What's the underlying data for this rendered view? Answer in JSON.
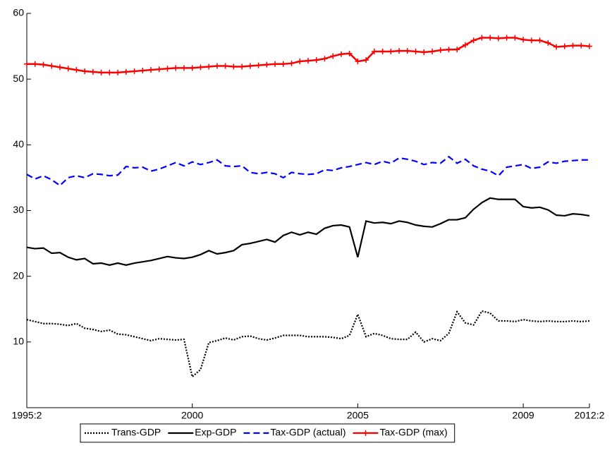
{
  "chart_data": {
    "type": "line",
    "categories": [
      "1995:2",
      null,
      null,
      null,
      null,
      null,
      null,
      null,
      null,
      null,
      null,
      null,
      null,
      null,
      null,
      null,
      null,
      null,
      null,
      null,
      "2000",
      null,
      null,
      null,
      null,
      null,
      null,
      null,
      null,
      null,
      null,
      null,
      null,
      null,
      null,
      null,
      null,
      null,
      null,
      null,
      "2005",
      null,
      null,
      null,
      null,
      null,
      null,
      null,
      null,
      null,
      null,
      null,
      null,
      null,
      null,
      null,
      null,
      null,
      null,
      null,
      "2009",
      null,
      null,
      null,
      null,
      null,
      null,
      null,
      "2012:2"
    ],
    "ylim": [
      0,
      60
    ],
    "yticks": [
      10,
      20,
      30,
      40,
      50,
      60
    ],
    "grid": false,
    "legend": "bottom",
    "series": [
      {
        "name": "Trans-GDP",
        "color": "#000000",
        "dash": "dotted",
        "marker": null,
        "values": [
          13.4,
          13.1,
          12.8,
          12.8,
          12.7,
          12.5,
          12.8,
          12.1,
          11.9,
          11.6,
          11.8,
          11.2,
          11.1,
          10.8,
          10.5,
          10.2,
          10.5,
          10.4,
          10.3,
          10.4,
          4.7,
          5.8,
          9.9,
          10.2,
          10.6,
          10.3,
          10.8,
          10.9,
          10.5,
          10.3,
          10.6,
          11.0,
          11.0,
          11.0,
          10.8,
          10.8,
          10.8,
          10.7,
          10.5,
          11.0,
          14.2,
          10.8,
          11.3,
          11.0,
          10.5,
          10.4,
          10.4,
          11.5,
          10.0,
          10.5,
          10.2,
          11.3,
          14.6,
          12.9,
          12.6,
          14.7,
          14.4,
          13.2,
          13.2,
          13.1,
          13.4,
          13.2,
          13.1,
          13.2,
          13.1,
          13.1,
          13.2,
          13.1,
          13.2
        ]
      },
      {
        "name": "Exp-GDP",
        "color": "#000000",
        "dash": "solid",
        "marker": null,
        "values": [
          24.4,
          24.2,
          24.3,
          23.5,
          23.6,
          22.9,
          22.5,
          22.7,
          21.9,
          22.0,
          21.7,
          22.0,
          21.7,
          22.0,
          22.2,
          22.4,
          22.7,
          23.0,
          22.8,
          22.7,
          22.9,
          23.3,
          23.9,
          23.4,
          23.6,
          23.9,
          24.8,
          25.0,
          25.3,
          25.6,
          25.2,
          26.2,
          26.7,
          26.3,
          26.7,
          26.4,
          27.3,
          27.7,
          27.8,
          27.5,
          22.9,
          28.4,
          28.1,
          28.2,
          28.0,
          28.4,
          28.2,
          27.8,
          27.6,
          27.5,
          28.0,
          28.6,
          28.6,
          28.9,
          30.2,
          31.2,
          31.9,
          31.7,
          31.7,
          31.7,
          30.6,
          30.4,
          30.5,
          30.1,
          29.3,
          29.2,
          29.5,
          29.4,
          29.2
        ]
      },
      {
        "name": "Tax-GDP (actual)",
        "color": "#0000ff",
        "dash": "dashed",
        "marker": null,
        "values": [
          35.5,
          34.8,
          35.3,
          34.7,
          33.8,
          35.0,
          35.3,
          35.0,
          35.6,
          35.5,
          35.3,
          35.4,
          36.7,
          36.5,
          36.6,
          36.0,
          36.3,
          36.8,
          37.3,
          36.8,
          37.4,
          37.0,
          37.3,
          37.7,
          36.8,
          36.7,
          36.8,
          35.8,
          35.6,
          35.8,
          35.6,
          35.0,
          35.8,
          35.6,
          35.5,
          35.6,
          36.2,
          36.1,
          36.5,
          36.7,
          37.0,
          37.3,
          37.0,
          37.5,
          37.2,
          38.0,
          37.8,
          37.5,
          37.0,
          37.3,
          37.2,
          38.2,
          37.2,
          37.8,
          36.8,
          36.3,
          36.0,
          35.3,
          36.6,
          36.8,
          37.0,
          36.4,
          36.6,
          37.4,
          37.2,
          37.5,
          37.6,
          37.7,
          37.7
        ]
      },
      {
        "name": "Tax-GDP (max)",
        "color": "#ff0000",
        "dash": "solid",
        "marker": "plus",
        "values": [
          52.3,
          52.3,
          52.2,
          52.0,
          51.8,
          51.6,
          51.4,
          51.2,
          51.1,
          51.0,
          51.0,
          51.0,
          51.1,
          51.2,
          51.3,
          51.4,
          51.5,
          51.6,
          51.7,
          51.7,
          51.7,
          51.8,
          51.9,
          52.0,
          52.0,
          51.9,
          51.9,
          52.0,
          52.1,
          52.2,
          52.3,
          52.3,
          52.4,
          52.7,
          52.8,
          52.9,
          53.1,
          53.5,
          53.8,
          53.9,
          52.7,
          52.9,
          54.2,
          54.2,
          54.2,
          54.3,
          54.3,
          54.2,
          54.1,
          54.2,
          54.4,
          54.5,
          54.5,
          55.2,
          55.9,
          56.3,
          56.3,
          56.2,
          56.3,
          56.3,
          56.0,
          55.9,
          55.9,
          55.5,
          54.9,
          55.0,
          55.1,
          55.1,
          55.0
        ]
      }
    ]
  }
}
